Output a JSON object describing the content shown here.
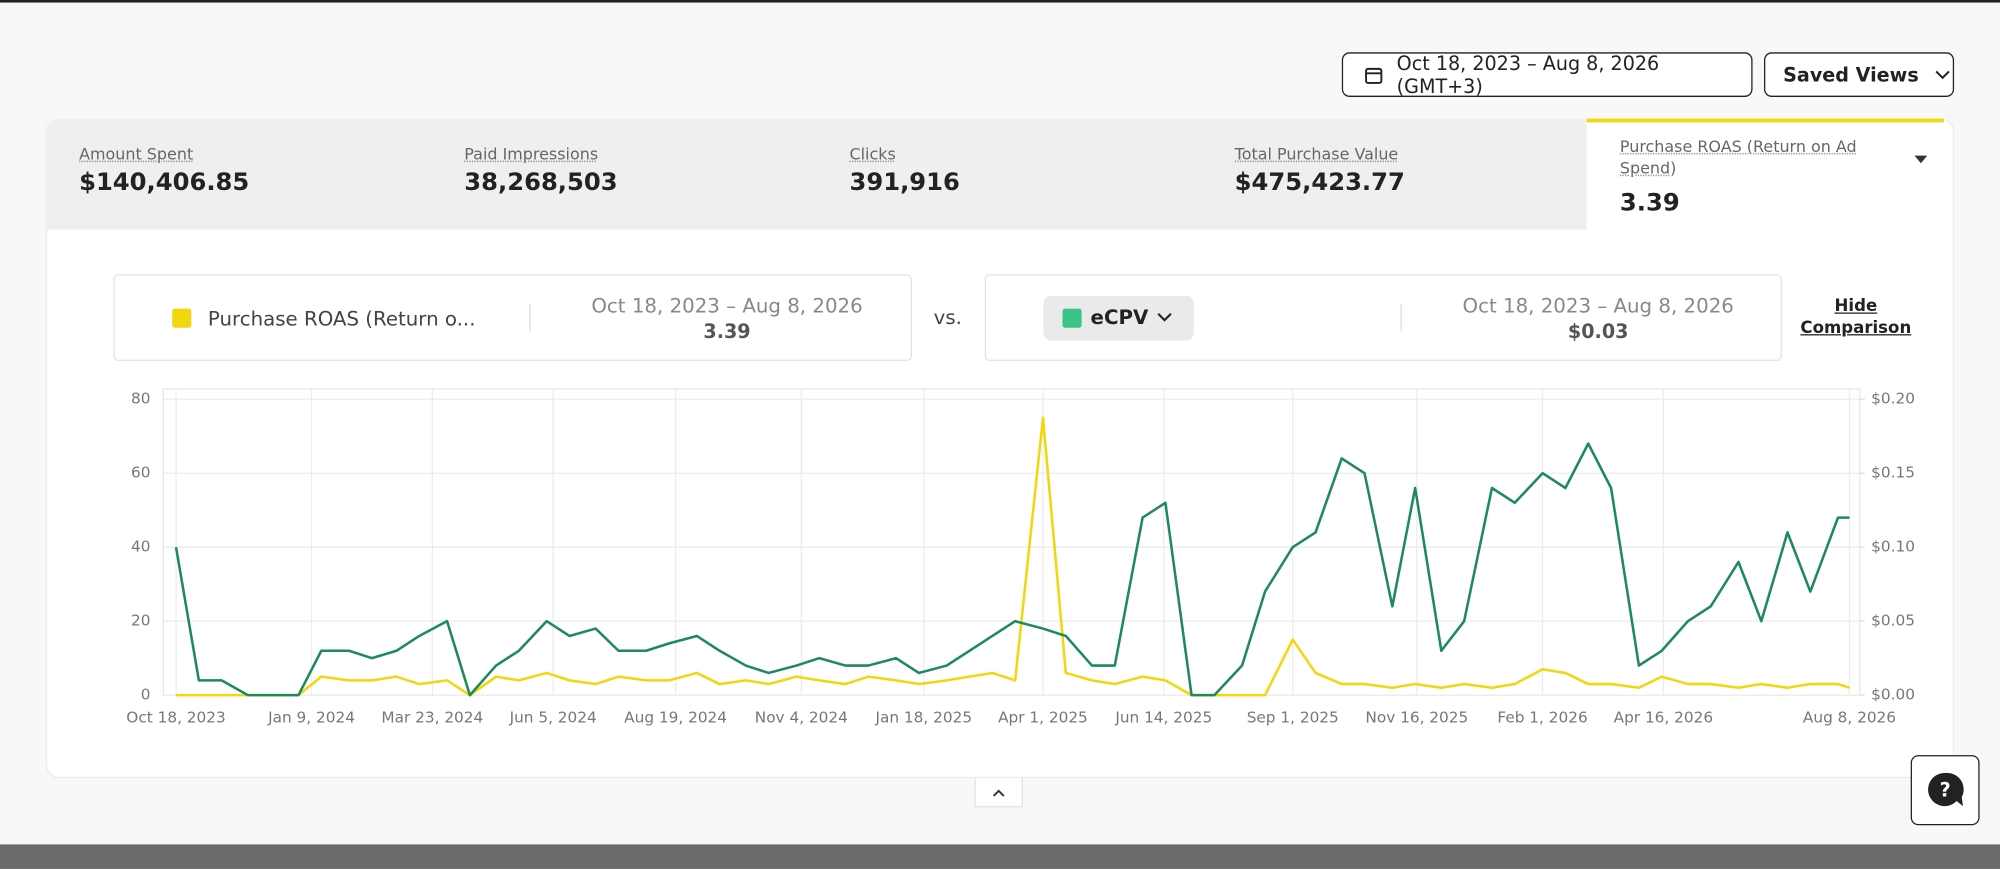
{
  "toolbar": {
    "date_range": "Oct 18, 2023 – Aug 8, 2026 (GMT+3)",
    "saved_views": "Saved Views"
  },
  "metrics": [
    {
      "label": "Amount Spent",
      "value": "$140,406.85"
    },
    {
      "label": "Paid Impressions",
      "value": "38,268,503"
    },
    {
      "label": "Clicks",
      "value": "391,916"
    },
    {
      "label": "Total Purchase Value",
      "value": "$475,423.77"
    }
  ],
  "selected_metric": {
    "label": "Purchase ROAS (Return on Ad Spend)",
    "value": "3.39"
  },
  "comparison": {
    "left": {
      "metric": "Purchase ROAS (Return o...",
      "date_range": "Oct 18, 2023 – Aug 8, 2026",
      "value": "3.39"
    },
    "vs": "vs.",
    "right": {
      "metric": "eCPV",
      "date_range": "Oct 18, 2023 – Aug 8, 2026",
      "value": "$0.03"
    },
    "hide": "Hide Comparison"
  },
  "chart_data": {
    "type": "line",
    "x": [
      "Oct 18, 2023",
      "Nov 1, 2023",
      "Nov 15, 2023",
      "Dec 1, 2023",
      "Dec 15, 2023",
      "Jan 1, 2024",
      "Jan 15, 2024",
      "Feb 1, 2024",
      "Feb 15, 2024",
      "Mar 1, 2024",
      "Mar 15, 2024",
      "Apr 1, 2024",
      "Apr 15, 2024",
      "May 1, 2024",
      "May 15, 2024",
      "Jun 1, 2024",
      "Jun 15, 2024",
      "Jul 1, 2024",
      "Jul 15, 2024",
      "Aug 1, 2024",
      "Aug 15, 2024",
      "Sep 1, 2024",
      "Sep 15, 2024",
      "Oct 1, 2024",
      "Oct 15, 2024",
      "Nov 1, 2024",
      "Nov 15, 2024",
      "Dec 1, 2024",
      "Dec 15, 2024",
      "Jan 1, 2025",
      "Jan 15, 2025",
      "Feb 1, 2025",
      "Feb 15, 2025",
      "Mar 1, 2025",
      "Mar 15, 2025",
      "Apr 1, 2025",
      "Apr 15, 2025",
      "May 1, 2025",
      "May 15, 2025",
      "Jun 1, 2025",
      "Jun 15, 2025",
      "Jul 1, 2025",
      "Jul 15, 2025",
      "Aug 1, 2025",
      "Aug 15, 2025",
      "Sep 1, 2025",
      "Sep 15, 2025",
      "Oct 1, 2025",
      "Oct 15, 2025",
      "Nov 1, 2025",
      "Nov 15, 2025",
      "Dec 1, 2025",
      "Dec 15, 2025",
      "Jan 1, 2026",
      "Jan 15, 2026",
      "Feb 1, 2026",
      "Feb 15, 2026",
      "Mar 1, 2026",
      "Mar 15, 2026",
      "Apr 1, 2026",
      "Apr 15, 2026",
      "May 1, 2026",
      "May 15, 2026",
      "Jun 1, 2026",
      "Jun 15, 2026",
      "Jul 1, 2026",
      "Jul 15, 2026",
      "Aug 1, 2026",
      "Aug 8, 2026"
    ],
    "series": [
      {
        "name": "Purchase ROAS (Return o...",
        "color": "#f0d70f",
        "axis": "y",
        "values": [
          0,
          0,
          0,
          0,
          0,
          0,
          5,
          4,
          4,
          5,
          3,
          4,
          0,
          5,
          4,
          6,
          4,
          3,
          5,
          4,
          4,
          6,
          3,
          4,
          3,
          5,
          4,
          3,
          5,
          4,
          3,
          4,
          5,
          6,
          4,
          75,
          6,
          4,
          3,
          5,
          4,
          0,
          0,
          0,
          0,
          15,
          6,
          3,
          3,
          2,
          3,
          2,
          3,
          2,
          3,
          7,
          6,
          3,
          3,
          2,
          5,
          3,
          3,
          2,
          3,
          2,
          3,
          3,
          2
        ]
      },
      {
        "name": "eCPV",
        "color": "#1e8a5c",
        "axis": "y2",
        "values": [
          0.1,
          0.01,
          0.01,
          0,
          0,
          0,
          0.03,
          0.03,
          0.025,
          0.03,
          0.04,
          0.05,
          0,
          0.02,
          0.03,
          0.05,
          0.04,
          0.045,
          0.03,
          0.03,
          0.035,
          0.04,
          0.03,
          0.02,
          0.015,
          0.02,
          0.025,
          0.02,
          0.02,
          0.025,
          0.015,
          0.02,
          0.03,
          0.04,
          0.05,
          0.045,
          0.04,
          0.02,
          0.02,
          0.12,
          0.13,
          0,
          0,
          0.02,
          0.07,
          0.1,
          0.11,
          0.16,
          0.15,
          0.06,
          0.14,
          0.03,
          0.05,
          0.14,
          0.13,
          0.15,
          0.14,
          0.17,
          0.14,
          0.02,
          0.03,
          0.05,
          0.06,
          0.09,
          0.05,
          0.11,
          0.07,
          0.12,
          0.12
        ]
      }
    ],
    "xlim": [
      "Oct 18, 2023",
      "Aug 8, 2026"
    ],
    "xticks": [
      "Oct 18, 2023",
      "Jan 9, 2024",
      "Mar 23, 2024",
      "Jun 5, 2024",
      "Aug 19, 2024",
      "Nov 4, 2024",
      "Jan 18, 2025",
      "Apr 1, 2025",
      "Jun 14, 2025",
      "Sep 1, 2025",
      "Nov 16, 2025",
      "Feb 1, 2026",
      "Apr 16, 2026",
      "Aug 8, 2026"
    ],
    "ylim": [
      0,
      80
    ],
    "yticks": [
      0,
      20,
      40,
      60,
      80
    ],
    "y2lim": [
      0,
      0.2
    ],
    "y2ticks": [
      {
        "value": 0,
        "label": "$0.00"
      },
      {
        "value": 0.05,
        "label": "$0.05"
      },
      {
        "value": 0.1,
        "label": "$0.10"
      },
      {
        "value": 0.15,
        "label": "$0.15"
      },
      {
        "value": 0.2,
        "label": "$0.20"
      }
    ],
    "grid": true
  }
}
